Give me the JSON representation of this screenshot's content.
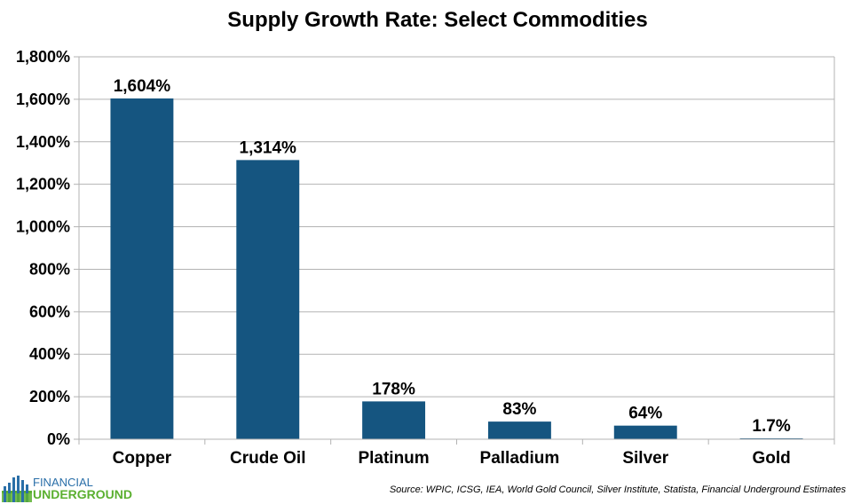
{
  "chart_data": {
    "type": "bar",
    "title": "Supply Growth Rate: Select Commodities",
    "xlabel": "",
    "ylabel": "",
    "categories": [
      "Copper",
      "Crude Oil",
      "Platinum",
      "Palladium",
      "Silver",
      "Gold"
    ],
    "values": [
      1604,
      1314,
      178,
      83,
      64,
      1.7
    ],
    "data_labels": [
      "1,604%",
      "1,314%",
      "178%",
      "83%",
      "64%",
      "1.7%"
    ],
    "ylim": [
      0,
      1800
    ],
    "yticks": [
      0,
      200,
      400,
      600,
      800,
      1000,
      1200,
      1400,
      1600,
      1800
    ],
    "ytick_labels": [
      "0%",
      "200%",
      "400%",
      "600%",
      "800%",
      "1,000%",
      "1,200%",
      "1,400%",
      "1,600%",
      "1,800%"
    ],
    "grid": true,
    "legend": "none",
    "bar_color": "#155580",
    "grid_color": "#b3b3b3"
  },
  "footer": {
    "source": "Source: WPIC, ICSG, IEA, World Gold Council, Silver Institute, Statista,  Financial Underground Estimates",
    "logo_top": "FINANCIAL",
    "logo_bottom": "UNDERGROUND",
    "logo_colors": {
      "blue": "#2a6fa8",
      "green": "#5bb030"
    }
  }
}
